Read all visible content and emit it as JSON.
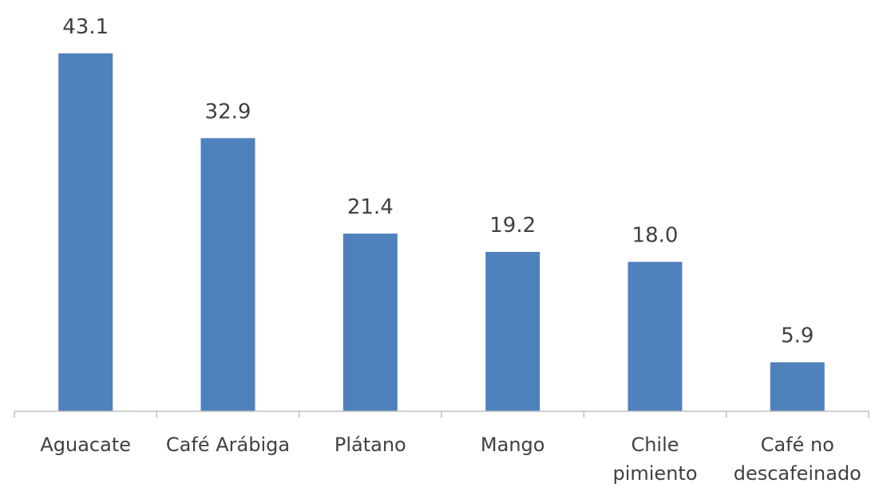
{
  "chart_data": {
    "type": "bar",
    "title": "",
    "xlabel": "",
    "ylabel": "",
    "categories": [
      [
        "Aguacate"
      ],
      [
        "Café Arábiga"
      ],
      [
        "Plátano"
      ],
      [
        "Mango"
      ],
      [
        "Chile",
        "pimiento"
      ],
      [
        "Café no",
        "descafeinado"
      ]
    ],
    "values": [
      43.1,
      32.9,
      21.4,
      19.2,
      18.0,
      5.9
    ],
    "value_labels": [
      "43.1",
      "32.9",
      "21.4",
      "19.2",
      "18.0",
      "5.9"
    ],
    "ylim": [
      0,
      43.1
    ],
    "grid": false,
    "legend": "none",
    "colors": {
      "bar": "#4F81BD",
      "axis": "#BFBFBF",
      "text": "#404040"
    }
  }
}
